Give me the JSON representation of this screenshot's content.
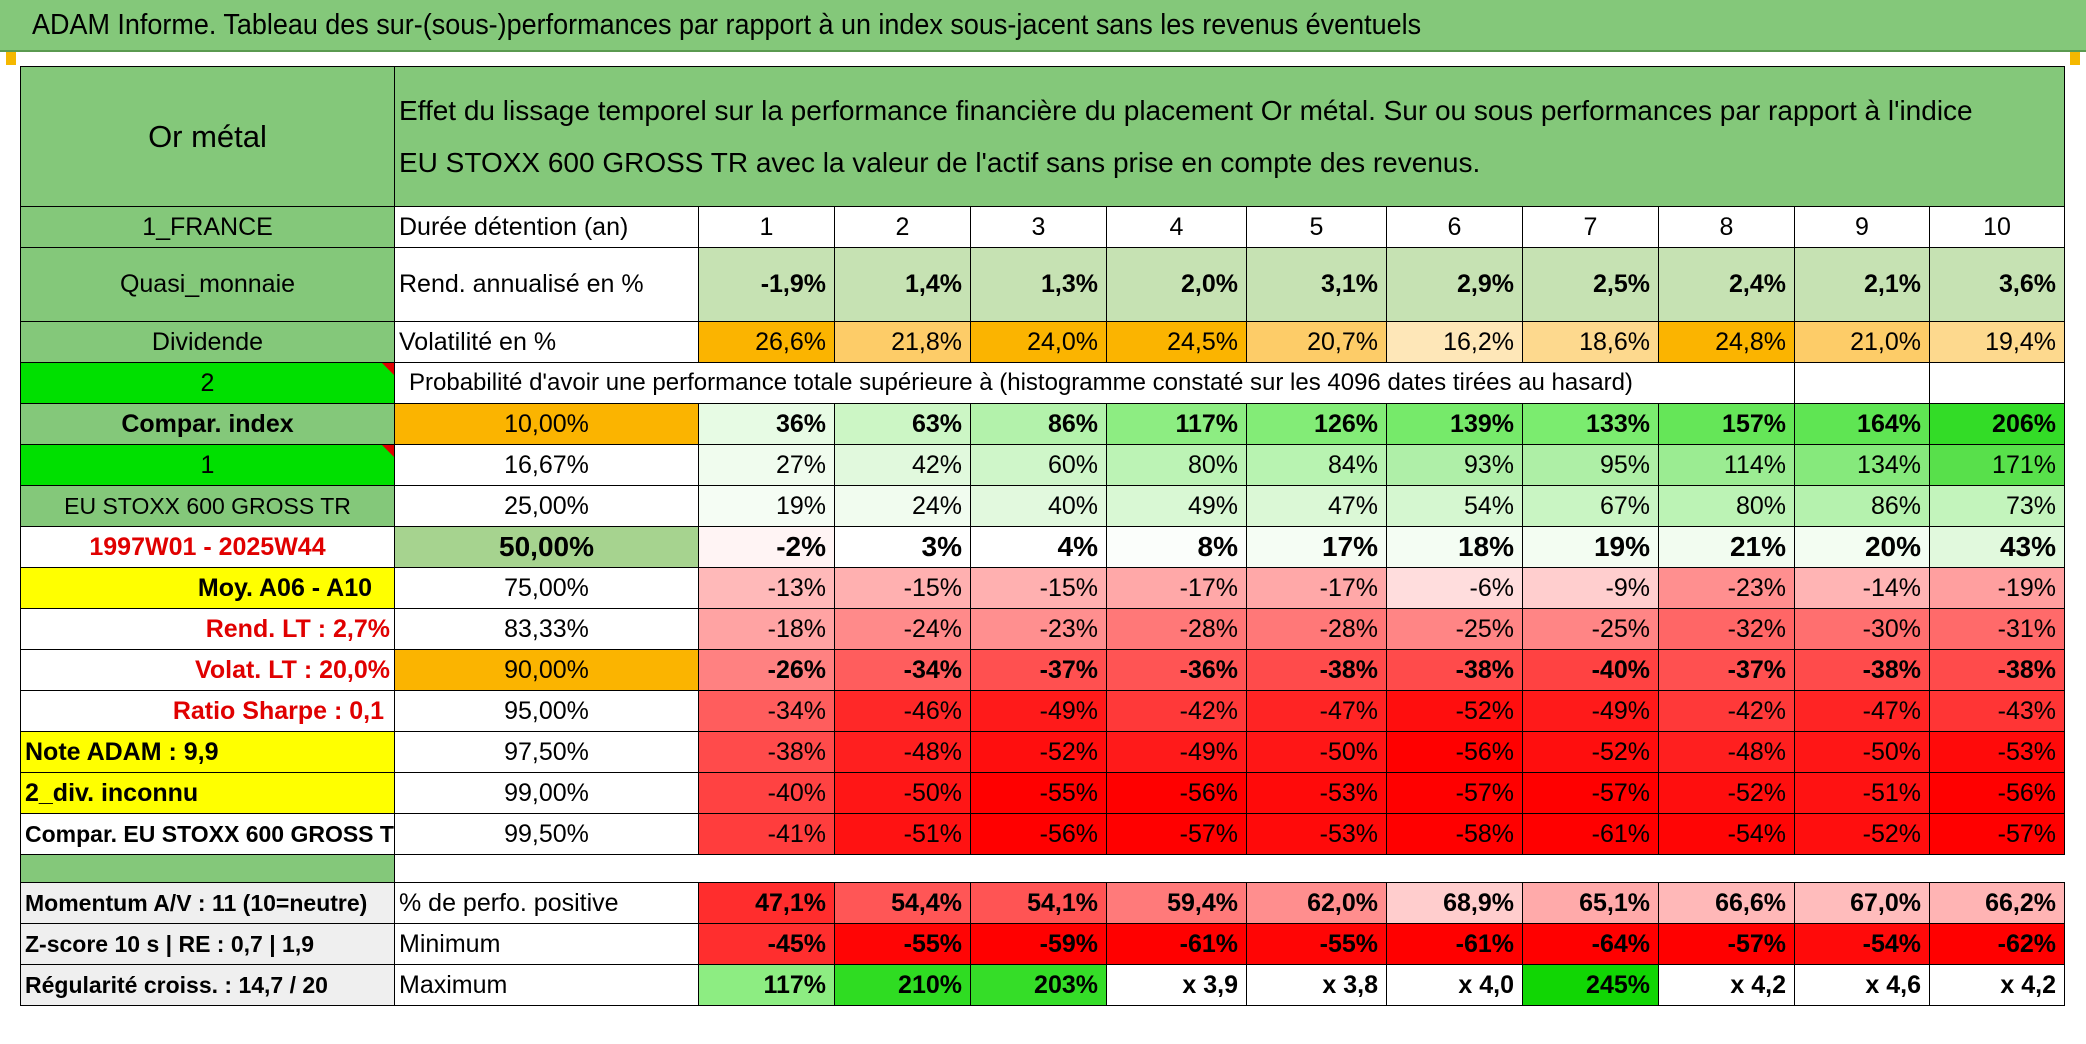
{
  "title": "ADAM Informe. Tableau des sur-(sous-)performances par rapport à un index sous-jacent sans les revenus éventuels",
  "header": {
    "asset": "Or métal",
    "description_line1": "Effet du lissage temporel sur la performance financière du placement Or métal. Sur ou sous performances par rapport à l'indice",
    "description_line2": "EU STOXX 600 GROSS TR avec la valeur de l'actif sans prise en compte des revenus."
  },
  "left_labels": {
    "country": "1_FRANCE",
    "category": "Quasi_monnaie",
    "dividend": "Dividende",
    "selector_1": "2",
    "compar_index": "Compar. index",
    "selector_2": "1",
    "index_name": "EU STOXX 600 GROSS TR",
    "period": "1997W01 - 2025W44",
    "moy": "Moy. A06 - A10",
    "rend_lt": "Rend. LT :   2,7%",
    "volat_lt": "Volat. LT :   20,0%",
    "sharpe": "Ratio Sharpe :    0,1",
    "note_adam": "Note ADAM : 9,9",
    "div_inconnu": "2_div. inconnu",
    "compar_name": "Compar. EU STOXX 600 GROSS TR",
    "momentum": "Momentum A/V : 11 (10=neutre)",
    "zscore": "Z-score 10 s | RE : 0,7 | 1,9",
    "regularite": "Régularité croiss. : 14,7 / 20"
  },
  "row_labels": {
    "duree": "Durée détention (an)",
    "rend": "Rend. annualisé en %",
    "volat": "Volatilité en %",
    "proba": "Probabilité d'avoir une performance totale supérieure à (histogramme constaté sur les 4096 dates tirées au hasard)",
    "perfo_pos": "% de perfo. positive",
    "minimum": "Minimum",
    "maximum": "Maximum"
  },
  "years": [
    "1",
    "2",
    "3",
    "4",
    "5",
    "6",
    "7",
    "8",
    "9",
    "10"
  ],
  "rend": [
    "-1,9%",
    "1,4%",
    "1,3%",
    "2,0%",
    "3,1%",
    "2,9%",
    "2,5%",
    "2,4%",
    "2,1%",
    "3,6%"
  ],
  "volat": [
    "26,6%",
    "21,8%",
    "24,0%",
    "24,5%",
    "20,7%",
    "16,2%",
    "18,6%",
    "24,8%",
    "21,0%",
    "19,4%"
  ],
  "volat_colors": [
    "#fbb400",
    "#fdcc68",
    "#fbb400",
    "#fbb400",
    "#fdcc68",
    "#fee7b8",
    "#fdd98e",
    "#fbb400",
    "#fdcc68",
    "#fdd98e"
  ],
  "percentiles": [
    {
      "p": "10,00%",
      "bold": true,
      "p_color": "#fbb400",
      "values": [
        "36%",
        "63%",
        "86%",
        "117%",
        "126%",
        "139%",
        "133%",
        "157%",
        "164%",
        "206%"
      ],
      "colors": [
        "#e7fbe4",
        "#ccf6c5",
        "#b3f2ab",
        "#8ded82",
        "#83ec77",
        "#76ea6a",
        "#7bec6f",
        "#65e658",
        "#5fe553",
        "#33dc27"
      ]
    },
    {
      "p": "16,67%",
      "bold": false,
      "p_color": "#ffffff",
      "values": [
        "27%",
        "42%",
        "60%",
        "80%",
        "84%",
        "93%",
        "95%",
        "114%",
        "134%",
        "171%"
      ],
      "colors": [
        "#f0fcee",
        "#e1f9dd",
        "#cff6c9",
        "#bcf3b5",
        "#b8f3b1",
        "#afefa8",
        "#aeefa6",
        "#9bec92",
        "#86e97c",
        "#58e04b"
      ]
    },
    {
      "p": "25,00%",
      "bold": false,
      "p_color": "#ffffff",
      "values": [
        "19%",
        "24%",
        "40%",
        "49%",
        "47%",
        "54%",
        "67%",
        "80%",
        "86%",
        "73%"
      ],
      "colors": [
        "#f5fdf4",
        "#f1fcef",
        "#e2f9de",
        "#d9f8d4",
        "#dbf8d6",
        "#d5f7d0",
        "#c9f5c3",
        "#bcf3b5",
        "#b5f2ae",
        "#c3f4bc"
      ]
    },
    {
      "p": "50,00%",
      "bold": true,
      "big": true,
      "p_color": "#a6d38f",
      "values": [
        "-2%",
        "3%",
        "4%",
        "8%",
        "17%",
        "18%",
        "19%",
        "21%",
        "20%",
        "43%"
      ],
      "colors": [
        "#fff4f4",
        "#ffffff",
        "#ffffff",
        "#fbfefb",
        "#f5fdf4",
        "#f4fdf3",
        "#f3fdf2",
        "#f2fcf0",
        "#f3fdf2",
        "#e1f9dd"
      ]
    },
    {
      "p": "75,00%",
      "bold": false,
      "p_color": "#ffffff",
      "values": [
        "-13%",
        "-15%",
        "-15%",
        "-17%",
        "-17%",
        "-6%",
        "-9%",
        "-23%",
        "-14%",
        "-19%"
      ],
      "colors": [
        "#ffb9b9",
        "#ffb0b0",
        "#ffb0b0",
        "#ffa8a8",
        "#ffa8a8",
        "#ffdddd",
        "#ffcece",
        "#ff8f8f",
        "#ffb4b4",
        "#ff9f9f"
      ]
    },
    {
      "p": "83,33%",
      "bold": false,
      "p_color": "#ffffff",
      "values": [
        "-18%",
        "-24%",
        "-23%",
        "-28%",
        "-28%",
        "-25%",
        "-25%",
        "-32%",
        "-30%",
        "-31%"
      ],
      "colors": [
        "#ffa3a3",
        "#ff8a8a",
        "#ff8f8f",
        "#ff7878",
        "#ff7878",
        "#ff8585",
        "#ff8585",
        "#ff6666",
        "#ff6f6f",
        "#ff6a6a"
      ]
    },
    {
      "p": "90,00%",
      "bold": true,
      "p_color": "#fbb400",
      "values": [
        "-26%",
        "-34%",
        "-37%",
        "-36%",
        "-38%",
        "-38%",
        "-40%",
        "-37%",
        "-38%",
        "-38%"
      ],
      "colors": [
        "#ff8181",
        "#ff5d5d",
        "#ff5050",
        "#ff5454",
        "#ff4b4b",
        "#ff4b4b",
        "#ff4242",
        "#ff5050",
        "#ff4b4b",
        "#ff4b4b"
      ]
    },
    {
      "p": "95,00%",
      "bold": false,
      "p_color": "#ffffff",
      "values": [
        "-34%",
        "-46%",
        "-49%",
        "-42%",
        "-47%",
        "-52%",
        "-49%",
        "-42%",
        "-47%",
        "-43%"
      ],
      "colors": [
        "#ff5d5d",
        "#ff2828",
        "#ff1a1a",
        "#ff3939",
        "#ff2424",
        "#ff0e0e",
        "#ff1a1a",
        "#ff3939",
        "#ff2424",
        "#ff3535"
      ]
    },
    {
      "p": "97,50%",
      "bold": false,
      "p_color": "#ffffff",
      "values": [
        "-38%",
        "-48%",
        "-52%",
        "-49%",
        "-50%",
        "-56%",
        "-52%",
        "-48%",
        "-50%",
        "-53%"
      ],
      "colors": [
        "#ff4b4b",
        "#ff1f1f",
        "#ff0e0e",
        "#ff1a1a",
        "#ff1616",
        "#ff0000",
        "#ff0e0e",
        "#ff1f1f",
        "#ff1616",
        "#ff0a0a"
      ]
    },
    {
      "p": "99,00%",
      "bold": false,
      "p_color": "#ffffff",
      "values": [
        "-40%",
        "-50%",
        "-55%",
        "-56%",
        "-53%",
        "-57%",
        "-57%",
        "-52%",
        "-51%",
        "-56%"
      ],
      "colors": [
        "#ff4242",
        "#ff1616",
        "#ff0000",
        "#ff0000",
        "#ff0a0a",
        "#ff0000",
        "#ff0000",
        "#ff0e0e",
        "#ff1212",
        "#ff0000"
      ]
    },
    {
      "p": "99,50%",
      "bold": false,
      "p_color": "#ffffff",
      "values": [
        "-41%",
        "-51%",
        "-56%",
        "-57%",
        "-53%",
        "-58%",
        "-61%",
        "-54%",
        "-52%",
        "-57%"
      ],
      "colors": [
        "#ff3d3d",
        "#ff1212",
        "#ff0000",
        "#ff0000",
        "#ff0a0a",
        "#ff0000",
        "#ff0000",
        "#ff0505",
        "#ff0e0e",
        "#ff0000"
      ]
    }
  ],
  "perfo_pos": [
    "47,1%",
    "54,4%",
    "54,1%",
    "59,4%",
    "62,0%",
    "68,9%",
    "65,1%",
    "66,6%",
    "67,0%",
    "66,2%"
  ],
  "perfo_pos_colors": [
    "#ff2d2d",
    "#ff5656",
    "#ff5454",
    "#ff7a7a",
    "#ff8e8e",
    "#ffcdcd",
    "#ffaaaa",
    "#ffb8b8",
    "#ffbcbc",
    "#ffb4b4"
  ],
  "minimum": [
    "-45%",
    "-55%",
    "-59%",
    "-61%",
    "-55%",
    "-61%",
    "-64%",
    "-57%",
    "-54%",
    "-62%"
  ],
  "minimum_colors": [
    "#ff2e2e",
    "#ff0505",
    "#ff0000",
    "#ff0000",
    "#ff0505",
    "#ff0000",
    "#ff0000",
    "#ff0000",
    "#ff0a0a",
    "#ff0000"
  ],
  "maximum": [
    "117%",
    "210%",
    "203%",
    "x 3,9",
    "x 3,8",
    "x 4,0",
    "245%",
    "x 4,2",
    "x 4,6",
    "x 4,2"
  ],
  "maximum_colors": [
    "#8ded82",
    "#2fdc22",
    "#35dd28",
    "#ffffff",
    "#ffffff",
    "#ffffff",
    "#11d604",
    "#ffffff",
    "#ffffff",
    "#ffffff"
  ],
  "colors": {
    "banner": "#84c87a",
    "label_green": "#84c87a",
    "bright_green": "#00e000",
    "yellow": "#ffff00",
    "orange": "#fbb400",
    "accent_red": "#e00000"
  }
}
